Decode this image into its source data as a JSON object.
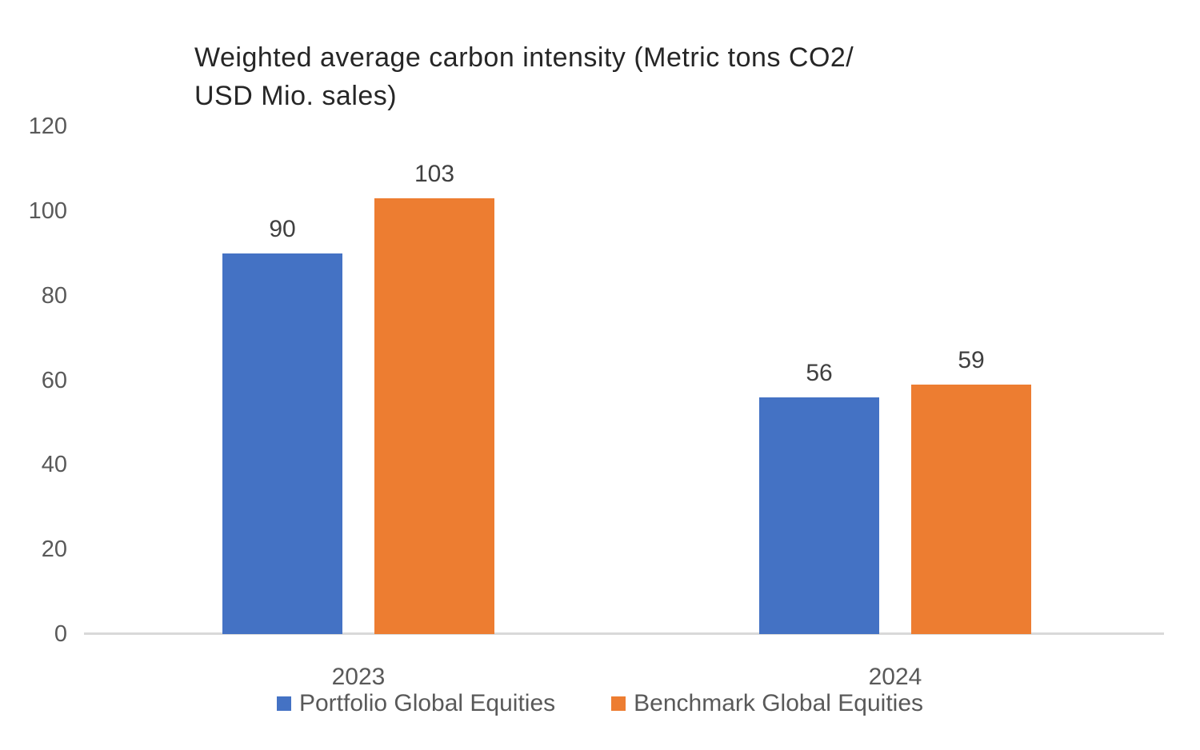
{
  "chart_data": {
    "type": "bar",
    "title": "Weighted average carbon intensity (Metric tons CO2/ USD Mio. sales)",
    "title_lines": [
      "Weighted average carbon intensity (Metric tons CO2/",
      "USD Mio. sales)"
    ],
    "categories": [
      "2023",
      "2024"
    ],
    "series": [
      {
        "name": "Portfolio Global Equities",
        "color": "#4472C4",
        "values": [
          90,
          56
        ]
      },
      {
        "name": "Benchmark Global Equities",
        "color": "#ED7D31",
        "values": [
          103,
          59
        ]
      }
    ],
    "data_labels": [
      [
        90,
        56
      ],
      [
        103,
        59
      ]
    ],
    "xlabel": "",
    "ylabel": "",
    "ylim": [
      0,
      120
    ],
    "yticks": [
      0,
      20,
      40,
      60,
      80,
      100,
      120
    ],
    "grid": false,
    "legend_position": "bottom",
    "colors": {
      "title": "#262626",
      "tick_label": "#595959",
      "category_label": "#595959",
      "data_label": "#404040",
      "legend_label": "#595959",
      "axis_line": "#D9D9D9"
    }
  }
}
